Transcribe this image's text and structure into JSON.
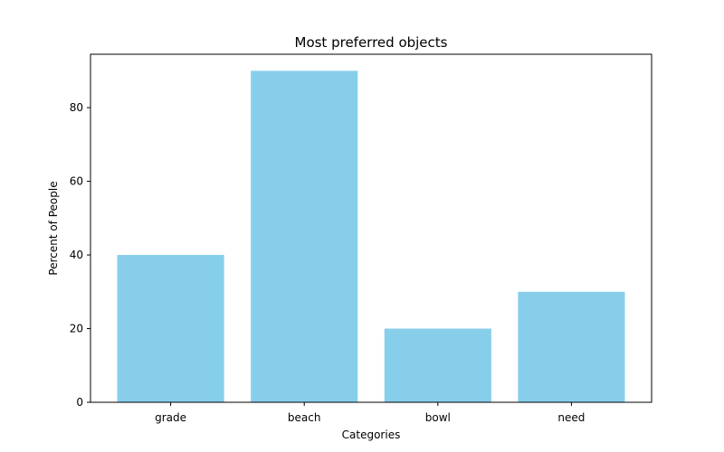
{
  "chart_data": {
    "type": "bar",
    "title": "Most preferred objects",
    "xlabel": "Categories",
    "ylabel": "Percent of People",
    "categories": [
      "grade",
      "beach",
      "bowl",
      "need"
    ],
    "values": [
      40,
      90,
      20,
      30
    ],
    "ylim": [
      0,
      94.5
    ],
    "yticks": [
      0,
      20,
      40,
      60,
      80
    ],
    "bar_color": "#87ceeb",
    "grid": false,
    "legend": "none"
  }
}
